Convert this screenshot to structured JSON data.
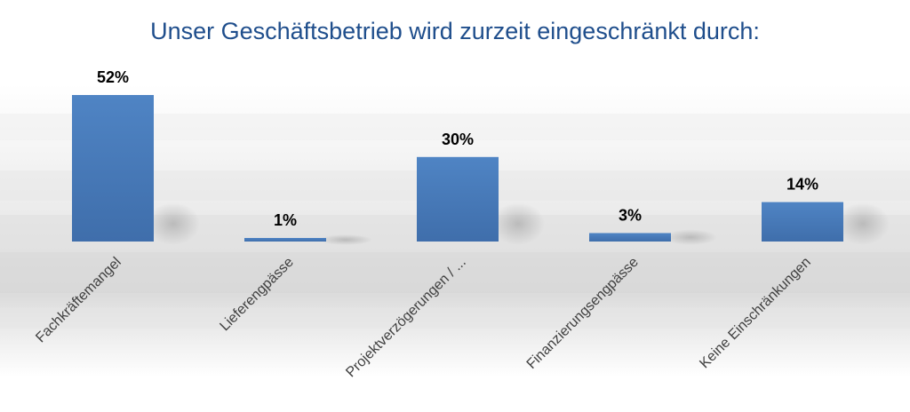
{
  "chart_data": {
    "type": "bar",
    "title": "Unser Geschäftsbetrieb wird zurzeit eingeschränkt durch:",
    "categories": [
      "Fachkräftemangel",
      "Lieferengpässe",
      "Projektverzögerungen / ...",
      "Finanzierungsengpässe",
      "Keine Einschränkungen"
    ],
    "values": [
      52,
      1,
      30,
      3,
      14
    ],
    "value_labels": [
      "52%",
      "1%",
      "30%",
      "3%",
      "14%"
    ],
    "ylim": [
      0,
      60
    ],
    "grid": false,
    "legend": "none",
    "colors": {
      "bar": "#4a7ebb",
      "bar_dark": "#3d6aa3",
      "title": "#1f4e8c",
      "label": "#404040",
      "value": "#000000"
    }
  }
}
